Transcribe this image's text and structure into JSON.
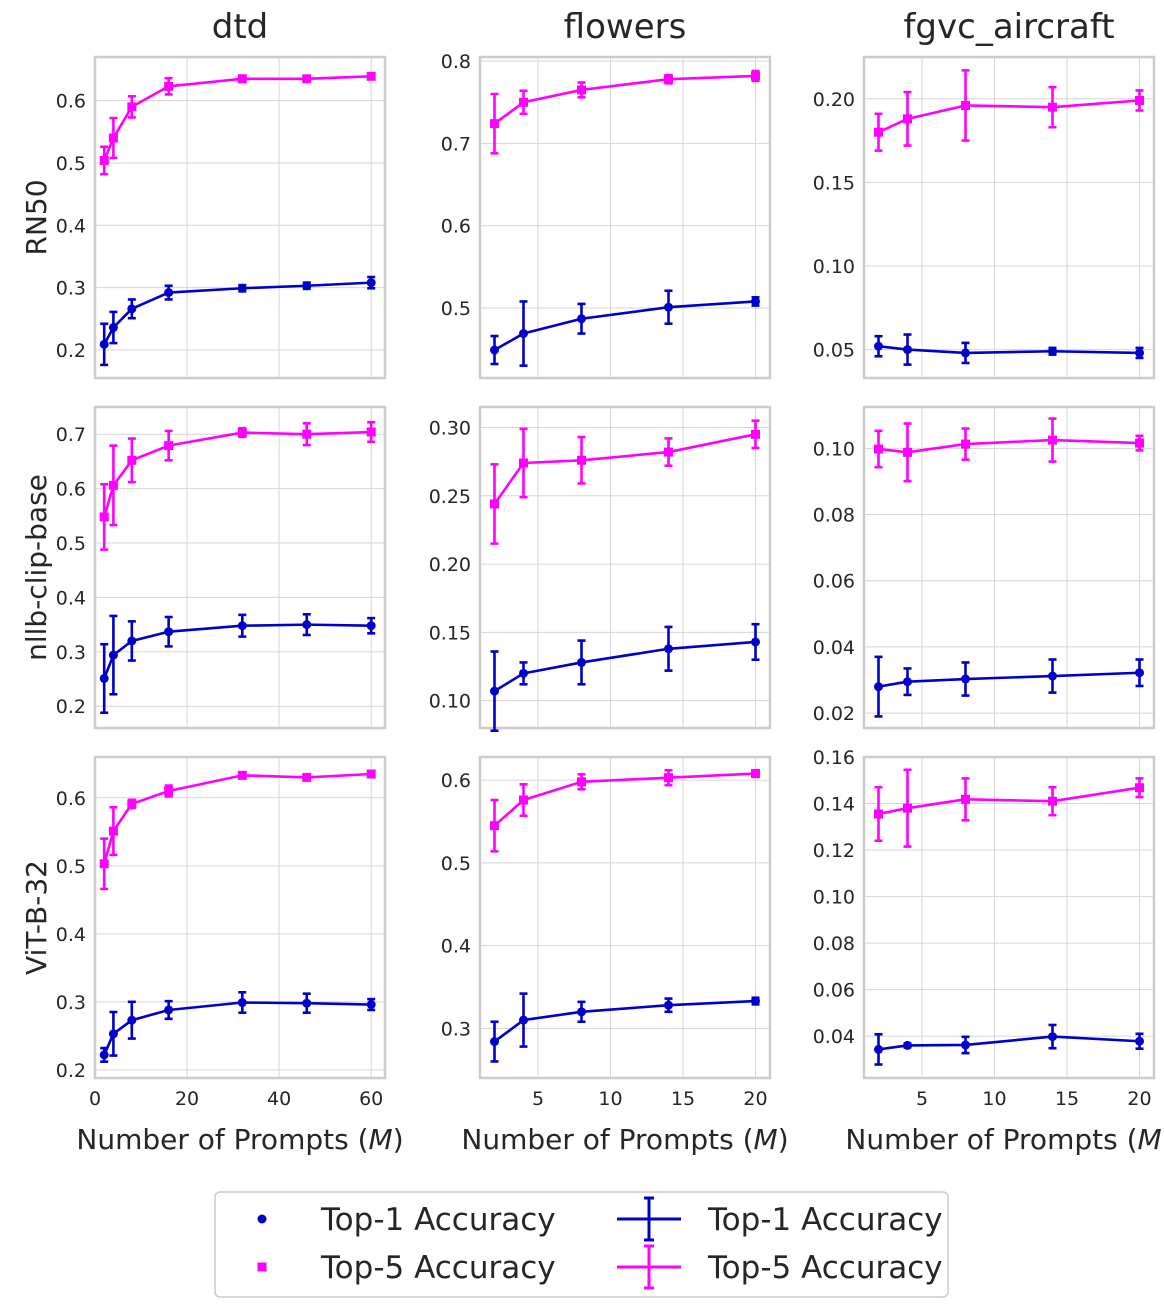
{
  "colors": {
    "top1": "#0000c8",
    "top5": "#ff00ff"
  },
  "columns": [
    "dtd",
    "flowers",
    "fgvc_aircraft"
  ],
  "rows": [
    "RN50",
    "nllb-clip-base",
    "ViT-B-32"
  ],
  "xlabel": "Number of Prompts (M)",
  "legend": {
    "entries": [
      {
        "label": "Top-1 Accuracy",
        "kind": "marker",
        "series": "top1",
        "marker": "circle"
      },
      {
        "label": "Top-5 Accuracy",
        "kind": "marker",
        "series": "top5",
        "marker": "square"
      },
      {
        "label": "Top-1 Accuracy",
        "kind": "errorbar",
        "series": "top1"
      },
      {
        "label": "Top-5 Accuracy",
        "kind": "errorbar",
        "series": "top5"
      }
    ]
  },
  "chart_data": [
    {
      "type": "line",
      "row": "RN50",
      "column": "dtd",
      "xlim": [
        0,
        63
      ],
      "ylim": [
        0.155,
        0.67
      ],
      "xticks": [
        0,
        20,
        40,
        60
      ],
      "yticks": [
        0.2,
        0.3,
        0.4,
        0.5,
        0.6
      ],
      "series": [
        {
          "key": "top1",
          "x": [
            2,
            4,
            8,
            16,
            32,
            46,
            60
          ],
          "y": [
            0.209,
            0.236,
            0.266,
            0.292,
            0.299,
            0.303,
            0.308
          ],
          "err": [
            0.033,
            0.025,
            0.015,
            0.011,
            0.005,
            0.005,
            0.009
          ]
        },
        {
          "key": "top5",
          "x": [
            2,
            4,
            8,
            16,
            32,
            46,
            60
          ],
          "y": [
            0.504,
            0.54,
            0.59,
            0.623,
            0.635,
            0.635,
            0.639
          ],
          "err": [
            0.022,
            0.032,
            0.017,
            0.013,
            0.005,
            0.004,
            0.004
          ]
        }
      ]
    },
    {
      "type": "line",
      "row": "RN50",
      "column": "flowers",
      "xlim": [
        1,
        21
      ],
      "ylim": [
        0.415,
        0.805
      ],
      "xticks": [
        5,
        10,
        15,
        20
      ],
      "yticks": [
        0.5,
        0.6,
        0.7,
        0.8
      ],
      "series": [
        {
          "key": "top1",
          "x": [
            2,
            4,
            8,
            14,
            20
          ],
          "y": [
            0.449,
            0.469,
            0.487,
            0.501,
            0.508
          ],
          "err": [
            0.017,
            0.039,
            0.018,
            0.02,
            0.005
          ]
        },
        {
          "key": "top5",
          "x": [
            2,
            4,
            8,
            14,
            20
          ],
          "y": [
            0.724,
            0.75,
            0.765,
            0.778,
            0.782
          ],
          "err": [
            0.036,
            0.014,
            0.009,
            0.005,
            0.006
          ]
        }
      ]
    },
    {
      "type": "line",
      "row": "RN50",
      "column": "fgvc_aircraft",
      "xlim": [
        1,
        21
      ],
      "ylim": [
        0.033,
        0.225
      ],
      "xticks": [
        5,
        10,
        15,
        20
      ],
      "yticks": [
        0.05,
        0.1,
        0.15,
        0.2
      ],
      "series": [
        {
          "key": "top1",
          "x": [
            2,
            4,
            8,
            14,
            20
          ],
          "y": [
            0.052,
            0.05,
            0.048,
            0.049,
            0.048
          ],
          "err": [
            0.006,
            0.009,
            0.006,
            0.002,
            0.003
          ]
        },
        {
          "key": "top5",
          "x": [
            2,
            4,
            8,
            14,
            20
          ],
          "y": [
            0.18,
            0.188,
            0.196,
            0.195,
            0.199
          ],
          "err": [
            0.011,
            0.016,
            0.021,
            0.012,
            0.006
          ]
        }
      ]
    },
    {
      "type": "line",
      "row": "nllb-clip-base",
      "column": "dtd",
      "xlim": [
        0,
        63
      ],
      "ylim": [
        0.16,
        0.75
      ],
      "xticks": [
        0,
        20,
        40,
        60
      ],
      "yticks": [
        0.2,
        0.3,
        0.4,
        0.5,
        0.6,
        0.7
      ],
      "series": [
        {
          "key": "top1",
          "x": [
            2,
            4,
            8,
            16,
            32,
            46,
            60
          ],
          "y": [
            0.251,
            0.294,
            0.32,
            0.337,
            0.348,
            0.35,
            0.348
          ],
          "err": [
            0.063,
            0.072,
            0.036,
            0.027,
            0.02,
            0.019,
            0.014
          ]
        },
        {
          "key": "top5",
          "x": [
            2,
            4,
            8,
            16,
            32,
            46,
            60
          ],
          "y": [
            0.548,
            0.606,
            0.652,
            0.679,
            0.703,
            0.7,
            0.704
          ],
          "err": [
            0.06,
            0.073,
            0.04,
            0.027,
            0.008,
            0.02,
            0.018
          ]
        }
      ]
    },
    {
      "type": "line",
      "row": "nllb-clip-base",
      "column": "flowers",
      "xlim": [
        1,
        21
      ],
      "ylim": [
        0.08,
        0.315
      ],
      "xticks": [
        5,
        10,
        15,
        20
      ],
      "yticks": [
        0.1,
        0.15,
        0.2,
        0.25,
        0.3
      ],
      "series": [
        {
          "key": "top1",
          "x": [
            2,
            4,
            8,
            14,
            20
          ],
          "y": [
            0.107,
            0.12,
            0.128,
            0.138,
            0.143
          ],
          "err": [
            0.029,
            0.008,
            0.016,
            0.016,
            0.013
          ]
        },
        {
          "key": "top5",
          "x": [
            2,
            4,
            8,
            14,
            20
          ],
          "y": [
            0.244,
            0.274,
            0.276,
            0.282,
            0.295
          ],
          "err": [
            0.029,
            0.025,
            0.017,
            0.01,
            0.01
          ]
        }
      ]
    },
    {
      "type": "line",
      "row": "nllb-clip-base",
      "column": "fgvc_aircraft",
      "xlim": [
        1,
        21
      ],
      "ylim": [
        0.0155,
        0.1125
      ],
      "xticks": [
        5,
        10,
        15,
        20
      ],
      "yticks": [
        0.02,
        0.04,
        0.06,
        0.08,
        0.1
      ],
      "series": [
        {
          "key": "top1",
          "x": [
            2,
            4,
            8,
            14,
            20
          ],
          "y": [
            0.028,
            0.0295,
            0.0303,
            0.0312,
            0.0322
          ],
          "err": [
            0.009,
            0.004,
            0.005,
            0.005,
            0.004
          ]
        },
        {
          "key": "top5",
          "x": [
            2,
            4,
            8,
            14,
            20
          ],
          "y": [
            0.0998,
            0.0988,
            0.1013,
            0.1025,
            0.1016
          ],
          "err": [
            0.0055,
            0.0087,
            0.0047,
            0.0065,
            0.0022
          ]
        }
      ]
    },
    {
      "type": "line",
      "row": "ViT-B-32",
      "column": "dtd",
      "xlim": [
        0,
        63
      ],
      "ylim": [
        0.188,
        0.66
      ],
      "xticks": [
        0,
        20,
        40,
        60
      ],
      "yticks": [
        0.2,
        0.3,
        0.4,
        0.5,
        0.6
      ],
      "series": [
        {
          "key": "top1",
          "x": [
            2,
            4,
            8,
            16,
            32,
            46,
            60
          ],
          "y": [
            0.222,
            0.253,
            0.273,
            0.288,
            0.299,
            0.298,
            0.296
          ],
          "err": [
            0.01,
            0.032,
            0.027,
            0.013,
            0.015,
            0.014,
            0.008
          ]
        },
        {
          "key": "top5",
          "x": [
            2,
            4,
            8,
            16,
            32,
            46,
            60
          ],
          "y": [
            0.503,
            0.551,
            0.591,
            0.61,
            0.633,
            0.63,
            0.635
          ],
          "err": [
            0.037,
            0.035,
            0.006,
            0.008,
            0.003,
            0.004,
            0.004
          ]
        }
      ]
    },
    {
      "type": "line",
      "row": "ViT-B-32",
      "column": "flowers",
      "xlim": [
        1,
        21
      ],
      "ylim": [
        0.24,
        0.628
      ],
      "xticks": [
        5,
        10,
        15,
        20
      ],
      "yticks": [
        0.3,
        0.4,
        0.5,
        0.6
      ],
      "series": [
        {
          "key": "top1",
          "x": [
            2,
            4,
            8,
            14,
            20
          ],
          "y": [
            0.284,
            0.31,
            0.32,
            0.328,
            0.333
          ],
          "err": [
            0.024,
            0.032,
            0.012,
            0.008,
            0.004
          ]
        },
        {
          "key": "top5",
          "x": [
            2,
            4,
            8,
            14,
            20
          ],
          "y": [
            0.545,
            0.576,
            0.598,
            0.603,
            0.608
          ],
          "err": [
            0.031,
            0.019,
            0.009,
            0.009,
            0.004
          ]
        }
      ]
    },
    {
      "type": "line",
      "row": "ViT-B-32",
      "column": "fgvc_aircraft",
      "xlim": [
        1,
        21
      ],
      "ylim": [
        0.022,
        0.16
      ],
      "xticks": [
        5,
        10,
        15,
        20
      ],
      "yticks": [
        0.04,
        0.06,
        0.08,
        0.1,
        0.12,
        0.14,
        0.16
      ],
      "series": [
        {
          "key": "top1",
          "x": [
            2,
            4,
            8,
            14,
            20
          ],
          "y": [
            0.0343,
            0.036,
            0.0362,
            0.0398,
            0.0378
          ],
          "err": [
            0.0065,
            0.0008,
            0.0035,
            0.005,
            0.0032
          ]
        },
        {
          "key": "top5",
          "x": [
            2,
            4,
            8,
            14,
            20
          ],
          "y": [
            0.1355,
            0.138,
            0.1418,
            0.141,
            0.1468
          ],
          "err": [
            0.0115,
            0.0165,
            0.009,
            0.006,
            0.004
          ]
        }
      ]
    }
  ]
}
